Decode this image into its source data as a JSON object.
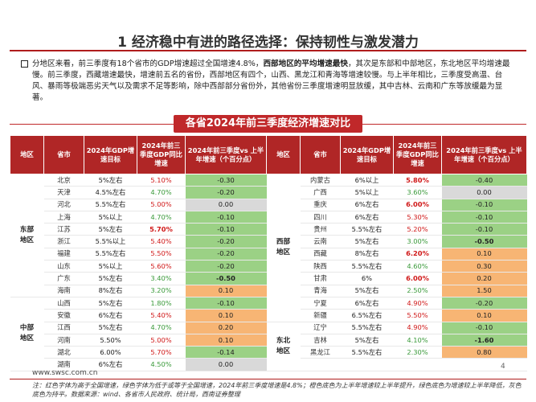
{
  "page": {
    "title": "1 经济稳中有进的路径选择：保持韧性与激发潜力",
    "summary": {
      "part1": "分地区来看，前三季度有18个省市的GDP增速超过全国增速4.8%，",
      "bold": "西部地区的平均增速最快",
      "part2": "，其次是东部和中部地区，东北地区平均增速最慢。前三季度，西藏增速最快，增速前五名的省份，西部地区有四个，山西、黑龙江和青海等增速较慢。与上半年相比，三季度受高温、台风、暴雨等极端恶劣天气以及需求不足等影响，除中西部部分省份外，其他省份三季度增速明显放缓，其中吉林、云南和广东等放缓最为显著。"
    },
    "banner": "各省2024年前三季度经济增速对比",
    "url": "www.swsc.com.cn",
    "page_number": "4",
    "note": "注：红色字体为高于全国增速，绿色字体为低于或等于全国增速，2024年前三季度增速是4.8%；橙色底色为上半年增速较上半年提升，绿色底色为增速较上半年降低，灰色底色为持平。数据来源：wind、各省市人民政府、统计局，西南证券整理"
  },
  "table": {
    "headers": [
      "地区",
      "省市",
      "2024年GDP增速目标",
      "2024年前三季度GDP同比增速",
      "2024年前三季度vs 上半年增速（个百分点）",
      "地区",
      "省市",
      "2024年GDP增速目标",
      "2024年前三季度GDP同比增速",
      "2024年前三季度vs 上半年增速（个百分点）"
    ],
    "left_regions": [
      {
        "name": "东部\n地区",
        "rows": [
          {
            "prov": "北京",
            "target": "5%左右",
            "growth": "5.10%",
            "gc": "red",
            "diff": "-0.30",
            "dc": "c-green"
          },
          {
            "prov": "天津",
            "target": "4.5%左右",
            "growth": "4.70%",
            "gc": "green",
            "diff": "-0.20",
            "dc": "c-green"
          },
          {
            "prov": "河北",
            "target": "5.5%左右",
            "growth": "5.00%",
            "gc": "red",
            "diff": "0.00",
            "dc": "c-gray"
          },
          {
            "prov": "上海",
            "target": "5%以上",
            "growth": "4.70%",
            "gc": "green",
            "diff": "-0.10",
            "dc": "c-green"
          },
          {
            "prov": "江苏",
            "target": "5%左右",
            "growth": "5.70%",
            "gc": "boldred",
            "diff": "-0.10",
            "dc": "c-green"
          },
          {
            "prov": "浙江",
            "target": "5.5%以上",
            "growth": "5.40%",
            "gc": "red",
            "diff": "-0.20",
            "dc": "c-green"
          },
          {
            "prov": "福建",
            "target": "5.5%左右",
            "growth": "5.50%",
            "gc": "red",
            "diff": "-0.20",
            "dc": "c-green"
          },
          {
            "prov": "山东",
            "target": "5%以上",
            "growth": "5.60%",
            "gc": "red",
            "diff": "-0.20",
            "dc": "c-green"
          },
          {
            "prov": "广东",
            "target": "5%左右",
            "growth": "3.40%",
            "gc": "green",
            "diff": "-0.50",
            "dc": "c-green",
            "bold": true
          },
          {
            "prov": "海南",
            "target": "8%左右",
            "growth": "3.20%",
            "gc": "green",
            "diff": "0.10",
            "dc": "c-orange"
          }
        ]
      },
      {
        "name": "中部\n地区",
        "rows": [
          {
            "prov": "山西",
            "target": "5%左右",
            "growth": "1.80%",
            "gc": "green",
            "diff": "-0.10",
            "dc": "c-green"
          },
          {
            "prov": "安徽",
            "target": "6%左右",
            "growth": "5.40%",
            "gc": "red",
            "diff": "0.10",
            "dc": "c-orange"
          },
          {
            "prov": "江西",
            "target": "5%左右",
            "growth": "4.70%",
            "gc": "green",
            "diff": "0.20",
            "dc": "c-orange"
          },
          {
            "prov": "河南",
            "target": "5.50%",
            "growth": "5.00%",
            "gc": "red",
            "diff": "0.10",
            "dc": "c-orange"
          },
          {
            "prov": "湖北",
            "target": "6.00%",
            "growth": "5.70%",
            "gc": "red",
            "diff": "-0.14",
            "dc": "c-green"
          },
          {
            "prov": "湖南",
            "target": "6%左右",
            "growth": "4.50%",
            "gc": "green",
            "diff": "0.00",
            "dc": "c-gray"
          }
        ]
      }
    ],
    "right_regions": [
      {
        "name": "西部\n地区",
        "rows": [
          {
            "prov": "内蒙古",
            "target": "6%以上",
            "growth": "5.80%",
            "gc": "boldred",
            "diff": "-0.40",
            "dc": "c-green"
          },
          {
            "prov": "广西",
            "target": "5%以上",
            "growth": "3.60%",
            "gc": "green",
            "diff": "0.00",
            "dc": "c-gray"
          },
          {
            "prov": "重庆",
            "target": "6%左右",
            "growth": "6.00%",
            "gc": "boldred",
            "diff": "-0.10",
            "dc": "c-green"
          },
          {
            "prov": "四川",
            "target": "6%左右",
            "growth": "5.30%",
            "gc": "red",
            "diff": "-0.10",
            "dc": "c-green"
          },
          {
            "prov": "贵州",
            "target": "5.5%左右",
            "growth": "5.20%",
            "gc": "red",
            "diff": "-0.10",
            "dc": "c-green"
          },
          {
            "prov": "云南",
            "target": "5%左右",
            "growth": "3.00%",
            "gc": "green",
            "diff": "-0.50",
            "dc": "c-green",
            "bold": true
          },
          {
            "prov": "西藏",
            "target": "8%左右",
            "growth": "6.20%",
            "gc": "boldred",
            "diff": "0.10",
            "dc": "c-orange"
          },
          {
            "prov": "陕西",
            "target": "5.5%左右",
            "growth": "4.60%",
            "gc": "green",
            "diff": "0.30",
            "dc": "c-orange"
          },
          {
            "prov": "甘肃",
            "target": "6%",
            "growth": "6.00%",
            "gc": "boldred",
            "diff": "0.20",
            "dc": "c-orange"
          },
          {
            "prov": "青海",
            "target": "5%左右",
            "growth": "2.50%",
            "gc": "green",
            "diff": "1.50",
            "dc": "c-orange"
          },
          {
            "prov": "宁夏",
            "target": "6%左右",
            "growth": "4.90%",
            "gc": "red",
            "diff": "-0.20",
            "dc": "c-green"
          },
          {
            "prov": "新疆",
            "target": "6.5%左右",
            "growth": "5.50%",
            "gc": "red",
            "diff": "0.10",
            "dc": "c-orange"
          }
        ]
      },
      {
        "name": "东北\n地区",
        "rows": [
          {
            "prov": "辽宁",
            "target": "5.5%左右",
            "growth": "4.90%",
            "gc": "red",
            "diff": "-0.10",
            "dc": "c-green"
          },
          {
            "prov": "吉林",
            "target": "5%左右",
            "growth": "4.10%",
            "gc": "green",
            "diff": "-1.60",
            "dc": "c-green",
            "bold": true
          },
          {
            "prov": "黑龙江",
            "target": "5.5%左右",
            "growth": "2.30%",
            "gc": "green",
            "diff": "0.80",
            "dc": "c-orange"
          },
          {
            "prov": "",
            "target": "",
            "growth": "",
            "gc": "",
            "diff": "",
            "dc": ""
          }
        ]
      }
    ],
    "colors": {
      "header_bg": "#b02626",
      "title_rule": "#b01c1c",
      "cell_green": "#9bd185",
      "cell_orange": "#f7b574",
      "cell_gray": "#d9d9d9",
      "text_red": "#d01818",
      "text_green": "#3a9a3a"
    }
  }
}
